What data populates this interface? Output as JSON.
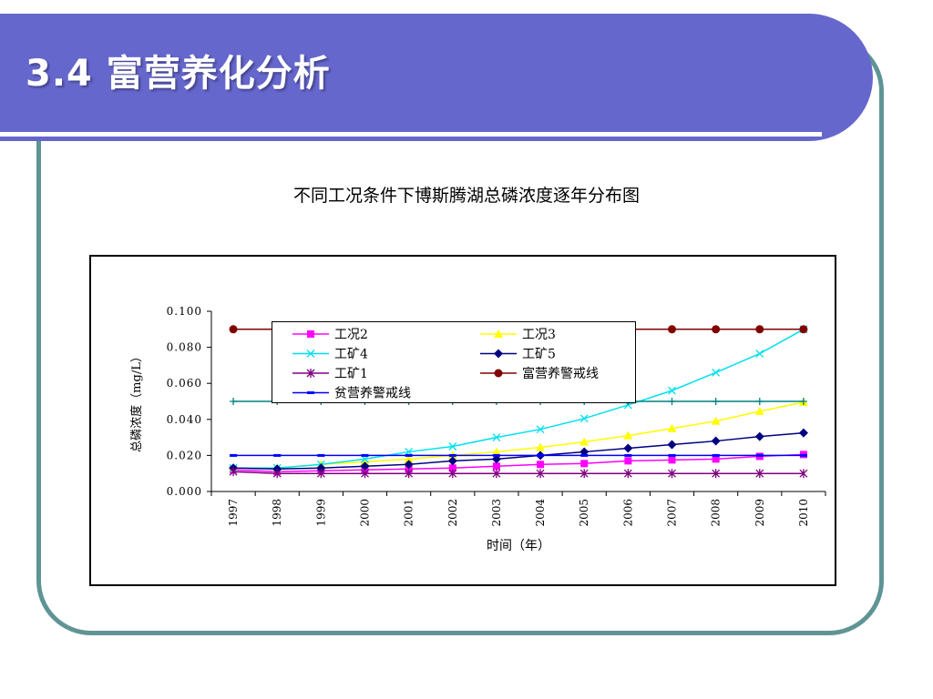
{
  "slide": {
    "title": "3.4  富营养化分析",
    "colors": {
      "band": "#6567cc",
      "frame": "#5f9495"
    }
  },
  "chart_data": {
    "type": "line",
    "title": "不同工况条件下博斯腾湖总磷浓度逐年分布图",
    "xlabel": "时间（年）",
    "ylabel": "总磷浓度（mg/L）",
    "ylim": [
      0,
      0.1
    ],
    "yticks": [
      "0.000",
      "0.020",
      "0.040",
      "0.060",
      "0.080",
      "0.100"
    ],
    "categories": [
      "1997",
      "1998",
      "1999",
      "2000",
      "2001",
      "2002",
      "2003",
      "2004",
      "2005",
      "2006",
      "2007",
      "2008",
      "2009",
      "2010"
    ],
    "legend_placement": "top, inside plot",
    "grid": false,
    "series": [
      {
        "name": "工况2",
        "color": "#ff00ff",
        "marker": "square",
        "values": [
          0.012,
          0.011,
          0.0115,
          0.012,
          0.0125,
          0.013,
          0.014,
          0.015,
          0.0155,
          0.017,
          0.0175,
          0.018,
          0.0195,
          0.0205
        ]
      },
      {
        "name": "工况3",
        "color": "#ffff00",
        "marker": "triangle",
        "values": [
          0.013,
          0.013,
          0.015,
          0.0165,
          0.018,
          0.02,
          0.022,
          0.0245,
          0.0275,
          0.031,
          0.035,
          0.039,
          0.0445,
          0.0495
        ]
      },
      {
        "name": "工矿4",
        "color": "#00e0f0",
        "marker": "x",
        "values": [
          0.013,
          0.013,
          0.015,
          0.018,
          0.022,
          0.025,
          0.03,
          0.0345,
          0.0405,
          0.048,
          0.056,
          0.066,
          0.0765,
          0.09
        ]
      },
      {
        "name": "工矿5",
        "color": "#000080",
        "marker": "diamond",
        "values": [
          0.013,
          0.0125,
          0.013,
          0.014,
          0.015,
          0.017,
          0.018,
          0.02,
          0.022,
          0.024,
          0.026,
          0.028,
          0.0305,
          0.0325
        ]
      },
      {
        "name": "工矿1",
        "color": "#800080",
        "marker": "star",
        "values": [
          0.011,
          0.01,
          0.01,
          0.01,
          0.01,
          0.01,
          0.01,
          0.01,
          0.01,
          0.01,
          0.01,
          0.01,
          0.01,
          0.01
        ]
      },
      {
        "name": "富营养警戒线",
        "color": "#800000",
        "marker": "circle",
        "values": [
          0.09,
          0.09,
          0.09,
          0.09,
          0.09,
          0.09,
          0.09,
          0.09,
          0.09,
          0.09,
          0.09,
          0.09,
          0.09,
          0.09
        ]
      },
      {
        "name": "贫营养警戒线",
        "color": "#0000ff",
        "marker": "dash",
        "values": [
          0.02,
          0.02,
          0.02,
          0.02,
          0.02,
          0.02,
          0.02,
          0.02,
          0.02,
          0.02,
          0.02,
          0.02,
          0.02,
          0.02
        ]
      },
      {
        "color": "#008080",
        "marker": "plus",
        "values": [
          0.05,
          0.05,
          0.05,
          0.05,
          0.05,
          0.05,
          0.05,
          0.05,
          0.05,
          0.05,
          0.05,
          0.05,
          0.05,
          0.05
        ]
      }
    ]
  }
}
